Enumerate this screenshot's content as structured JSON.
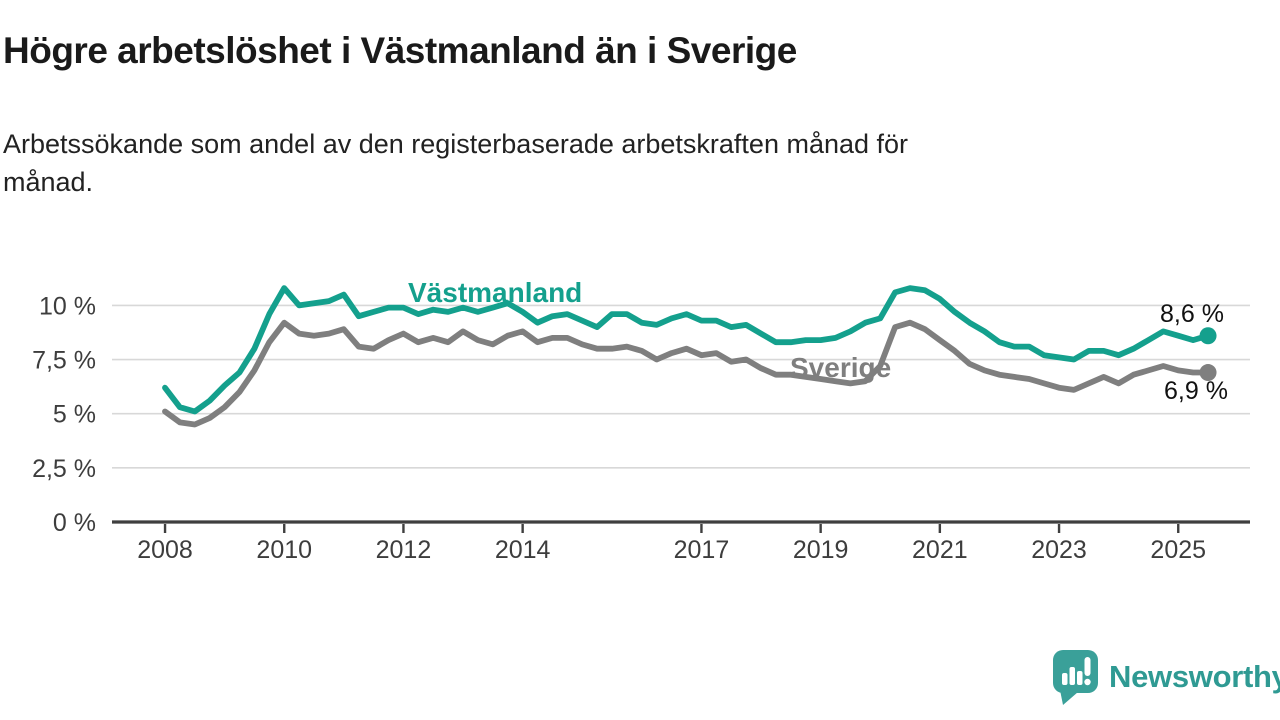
{
  "header": {
    "title": "Högre arbetslöshet i Västmanland än i Sverige",
    "subtitle": "Arbetssökande som andel av den registerbaserade arbetskraften månad för\nmånad."
  },
  "chart_data": {
    "type": "line",
    "title": "Högre arbetslöshet i Västmanland än i Sverige",
    "subtitle": "Arbetssökande som andel av den registerbaserade arbetskraften månad för månad.",
    "xlabel": "",
    "ylabel": "",
    "grid": true,
    "legend": "inline-labels",
    "ylim": [
      0,
      11.6
    ],
    "x_domain": [
      2007.11,
      2026.2
    ],
    "x": [
      2008,
      2008.25,
      2008.5,
      2008.75,
      2009,
      2009.25,
      2009.5,
      2009.75,
      2010,
      2010.25,
      2010.5,
      2010.75,
      2011,
      2011.25,
      2011.5,
      2011.75,
      2012,
      2012.25,
      2012.5,
      2012.75,
      2013,
      2013.25,
      2013.5,
      2013.75,
      2014,
      2014.25,
      2014.5,
      2014.75,
      2015,
      2015.25,
      2015.5,
      2015.75,
      2016,
      2016.25,
      2016.5,
      2016.75,
      2017,
      2017.25,
      2017.5,
      2017.75,
      2018,
      2018.25,
      2018.5,
      2018.75,
      2019,
      2019.25,
      2019.5,
      2019.75,
      2020,
      2020.25,
      2020.5,
      2020.75,
      2021,
      2021.25,
      2021.5,
      2021.75,
      2022,
      2022.25,
      2022.5,
      2022.75,
      2023,
      2023.25,
      2023.5,
      2023.75,
      2024,
      2024.25,
      2024.5,
      2024.75,
      2025,
      2025.25,
      2025.5
    ],
    "series": [
      {
        "name": "Västmanland",
        "color": "#14a08d",
        "end_label": "8,6 %",
        "end_value": 8.6,
        "values": [
          6.2,
          5.3,
          5.1,
          5.6,
          6.3,
          6.9,
          8.0,
          9.6,
          10.8,
          10.0,
          10.1,
          10.2,
          10.5,
          9.5,
          9.7,
          9.9,
          9.9,
          9.6,
          9.8,
          9.7,
          9.9,
          9.7,
          9.9,
          10.1,
          9.7,
          9.2,
          9.5,
          9.6,
          9.3,
          9.0,
          9.6,
          9.6,
          9.2,
          9.1,
          9.4,
          9.6,
          9.3,
          9.3,
          9.0,
          9.1,
          8.7,
          8.3,
          8.3,
          8.4,
          8.4,
          8.5,
          8.8,
          9.2,
          9.4,
          10.6,
          10.8,
          10.7,
          10.3,
          9.7,
          9.2,
          8.8,
          8.3,
          8.1,
          8.1,
          7.7,
          7.6,
          7.5,
          7.9,
          7.9,
          7.7,
          8.0,
          8.4,
          8.8,
          8.6,
          8.4,
          8.6
        ]
      },
      {
        "name": "Sverige",
        "color": "#7f7f7f",
        "end_label": "6,9 %",
        "end_value": 6.9,
        "values": [
          5.1,
          4.6,
          4.5,
          4.8,
          5.3,
          6.0,
          7.0,
          8.3,
          9.2,
          8.7,
          8.6,
          8.7,
          8.9,
          8.1,
          8.0,
          8.4,
          8.7,
          8.3,
          8.5,
          8.3,
          8.8,
          8.4,
          8.2,
          8.6,
          8.8,
          8.3,
          8.5,
          8.5,
          8.2,
          8.0,
          8.0,
          8.1,
          7.9,
          7.5,
          7.8,
          8.0,
          7.7,
          7.8,
          7.4,
          7.5,
          7.1,
          6.8,
          6.8,
          6.7,
          6.6,
          6.5,
          6.4,
          6.5,
          7.2,
          9.0,
          9.2,
          8.9,
          8.4,
          7.9,
          7.3,
          7.0,
          6.8,
          6.7,
          6.6,
          6.4,
          6.2,
          6.1,
          6.4,
          6.7,
          6.4,
          6.8,
          7.0,
          7.2,
          7.0,
          6.9,
          6.9
        ]
      }
    ],
    "yticks": [
      {
        "v": 0,
        "label": "0 %"
      },
      {
        "v": 2.5,
        "label": "2,5 %"
      },
      {
        "v": 5,
        "label": "5 %"
      },
      {
        "v": 7.5,
        "label": "7,5 %"
      },
      {
        "v": 10,
        "label": "10 %"
      }
    ],
    "xticks": [
      {
        "v": 2008,
        "label": "2008"
      },
      {
        "v": 2010,
        "label": "2010"
      },
      {
        "v": 2012,
        "label": "2012"
      },
      {
        "v": 2014,
        "label": "2014"
      },
      {
        "v": 2017,
        "label": "2017"
      },
      {
        "v": 2019,
        "label": "2019"
      },
      {
        "v": 2021,
        "label": "2021"
      },
      {
        "v": 2023,
        "label": "2023"
      },
      {
        "v": 2025,
        "label": "2025"
      }
    ]
  },
  "footer": {
    "brand": "Newsworthy"
  },
  "colors": {
    "accent_teal": "#14a08d",
    "series_gray": "#7f7f7f",
    "grid": "#d8d8d8",
    "axis": "#3f3f3f",
    "tick_text": "#3d3d3d",
    "value_text": "#111111",
    "brand_teal": "#2f9a93",
    "logo_bubble": "#3aa099"
  }
}
